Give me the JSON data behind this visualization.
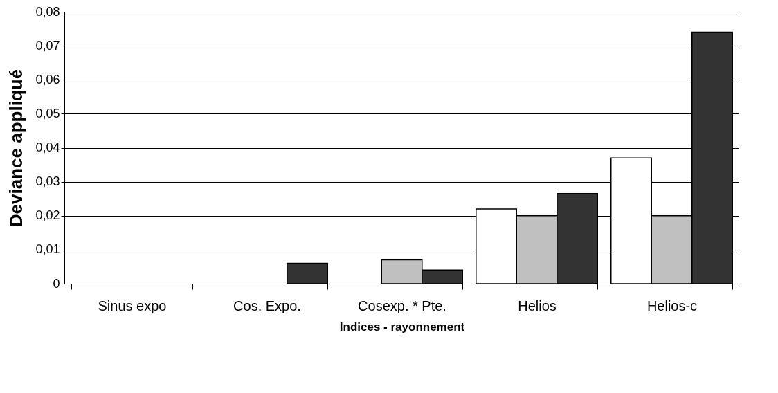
{
  "chart_data": {
    "type": "bar",
    "xlabel": "Indices - rayonnement",
    "ylabel": "Deviance appliqué",
    "categories": [
      "Sinus expo",
      "Cos. Expo.",
      "Cosexp. * Pte.",
      "Helios",
      "Helios-c"
    ],
    "series": [
      {
        "color": "#ffffff",
        "values": [
          null,
          null,
          null,
          0.022,
          0.037
        ]
      },
      {
        "color": "#c0c0c0",
        "values": [
          null,
          null,
          0.007,
          0.02,
          0.02
        ]
      },
      {
        "color": "#333333",
        "values": [
          null,
          0.006,
          0.004,
          0.0265,
          0.074
        ]
      }
    ],
    "ylim": [
      0,
      0.08
    ],
    "yticks": [
      0,
      {
        "value": 0.01,
        "label": "0,01"
      },
      {
        "value": 0.02,
        "label": "0,02"
      },
      {
        "value": 0.03,
        "label": "0,03"
      },
      {
        "value": 0.04,
        "label": "0,04"
      },
      {
        "value": 0.05,
        "label": "0,05"
      },
      {
        "value": 0.06,
        "label": "0,06"
      },
      {
        "value": 0.07,
        "label": "0,07"
      },
      {
        "value": 0.08,
        "label": "0,08"
      }
    ],
    "grid": "y",
    "legend": false
  }
}
